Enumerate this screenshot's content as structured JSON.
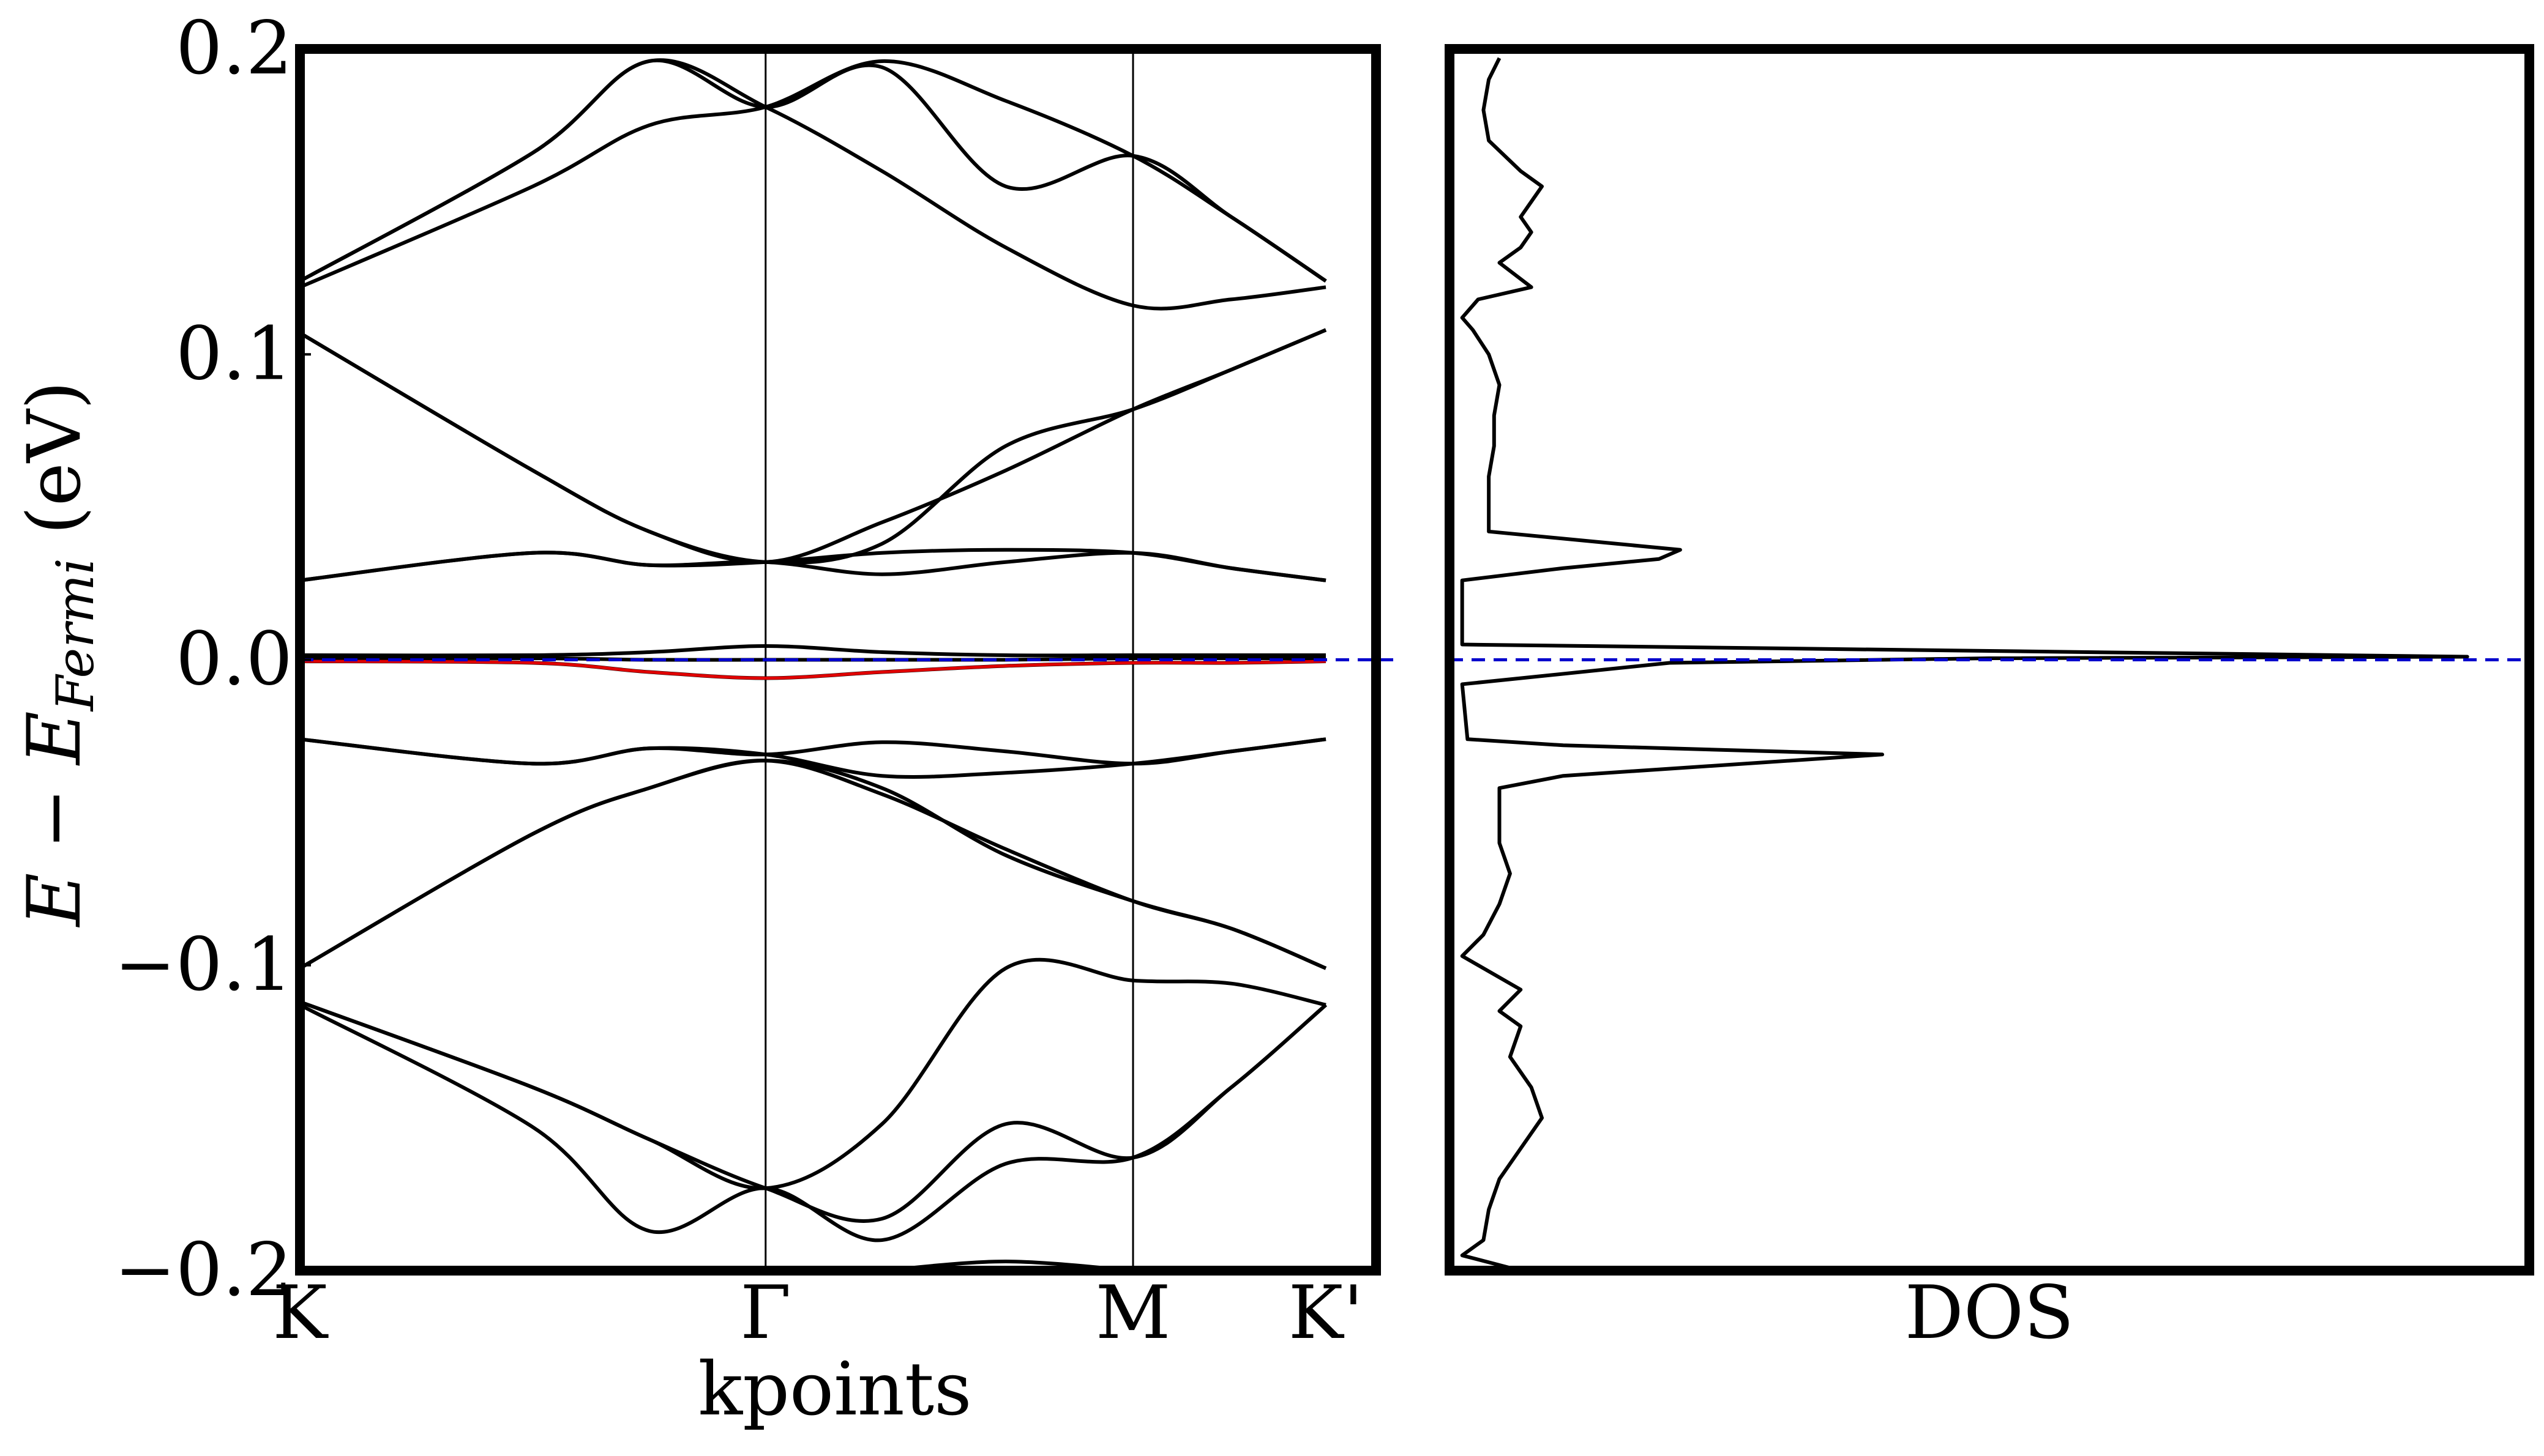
{
  "chart_data": [
    {
      "type": "line",
      "panel": "band-structure",
      "xlabel": "kpoints",
      "ylabel": "E − E_Fermi (eV)",
      "ylabel_parts": {
        "E": "E",
        "minus": " − ",
        "sub_symbol": "E",
        "sub": "Fermi",
        "unit": " (eV)"
      },
      "ylim": [
        -0.2,
        0.2
      ],
      "yticks": [
        -0.2,
        -0.1,
        0.0,
        0.1,
        0.2
      ],
      "ytick_labels": [
        "−0.2",
        "−0.1",
        "0.0",
        "0.1",
        "0.2"
      ],
      "xlim": [
        0,
        2.82
      ],
      "kpoints": [
        {
          "label": "K",
          "x": 0
        },
        {
          "label": "Γ",
          "x": 1.28
        },
        {
          "label": "M",
          "x": 2.29
        },
        {
          "label": "K'",
          "x": 2.82
        }
      ],
      "fermi_level": 0.0,
      "colors": {
        "bands": "#000000",
        "highlight_band": "#e00000",
        "fermi_line": "#0000cc"
      },
      "x": [
        0,
        0.64,
        0.96,
        1.28,
        1.6,
        1.94,
        2.29,
        2.56,
        2.82
      ],
      "series": [
        {
          "values": [
            0.122,
            0.155,
            0.175,
            0.181,
            0.196,
            0.183,
            0.165,
            0.145,
            0.124
          ]
        },
        {
          "values": [
            0.124,
            0.166,
            0.196,
            0.181,
            0.16,
            0.135,
            0.116,
            0.118,
            0.122
          ]
        },
        {
          "values": [
            0.124,
            0.166,
            0.196,
            0.181,
            0.194,
            0.155,
            0.165,
            0.145,
            0.124
          ]
        },
        {
          "values": [
            0.107,
            0.062,
            0.042,
            0.032,
            0.045,
            0.062,
            0.082,
            0.095,
            0.108
          ]
        },
        {
          "values": [
            0.107,
            0.062,
            0.042,
            0.032,
            0.038,
            0.07,
            0.082,
            0.095,
            0.108
          ]
        },
        {
          "values": [
            0.026,
            0.035,
            0.031,
            0.032,
            0.035,
            0.036,
            0.035,
            0.03,
            0.026
          ]
        },
        {
          "values": [
            0.026,
            0.035,
            0.031,
            0.032,
            0.028,
            0.032,
            0.035,
            0.03,
            0.026
          ]
        },
        {
          "values": [
            0.0015,
            0.0015,
            0.0025,
            0.0045,
            0.0025,
            0.0015,
            0.0015,
            0.0015,
            0.0015
          ]
        },
        {
          "values": [
            0.0005,
            0.0005,
            0.0,
            0.0,
            0.0,
            0.0,
            0.0005,
            0.0005,
            0.0005
          ]
        },
        {
          "values": [
            -0.0005,
            -0.001,
            -0.004,
            -0.006,
            -0.004,
            -0.002,
            -0.001,
            -0.001,
            -0.0005
          ]
        },
        {
          "name": "highlighted",
          "color": "#e00000",
          "values": [
            -0.0005,
            -0.001,
            -0.004,
            -0.006,
            -0.004,
            -0.002,
            -0.001,
            -0.001,
            -0.0005
          ]
        },
        {
          "values": [
            -0.026,
            -0.034,
            -0.029,
            -0.031,
            -0.027,
            -0.03,
            -0.034,
            -0.03,
            -0.026
          ]
        },
        {
          "values": [
            -0.026,
            -0.034,
            -0.029,
            -0.031,
            -0.038,
            -0.037,
            -0.034,
            -0.03,
            -0.026
          ]
        },
        {
          "values": [
            -0.101,
            -0.057,
            -0.042,
            -0.033,
            -0.044,
            -0.062,
            -0.079,
            -0.088,
            -0.101
          ]
        },
        {
          "values": [
            -0.101,
            -0.057,
            -0.042,
            -0.033,
            -0.042,
            -0.064,
            -0.079,
            -0.088,
            -0.101
          ]
        },
        {
          "values": [
            -0.112,
            -0.14,
            -0.157,
            -0.173,
            -0.152,
            -0.101,
            -0.105,
            -0.106,
            -0.113
          ]
        },
        {
          "values": [
            -0.113,
            -0.153,
            -0.187,
            -0.173,
            -0.19,
            -0.165,
            -0.163,
            -0.14,
            -0.113
          ]
        },
        {
          "values": [
            -0.112,
            -0.14,
            -0.157,
            -0.173,
            -0.183,
            -0.152,
            -0.163,
            -0.14,
            -0.113
          ]
        },
        {
          "values": [
            null,
            null,
            null,
            null,
            -0.2,
            -0.197,
            -0.2,
            null,
            null
          ]
        }
      ]
    },
    {
      "type": "line",
      "panel": "dos",
      "xlabel": "DOS",
      "orientation": "horizontal",
      "ylim": [
        -0.2,
        0.2
      ],
      "xlim": [
        0,
        1
      ],
      "fermi_level": 0.0,
      "colors": {
        "dos": "#000000",
        "fermi_line": "#0000cc"
      },
      "energy": [
        0.197,
        0.19,
        0.18,
        0.17,
        0.16,
        0.155,
        0.15,
        0.145,
        0.14,
        0.135,
        0.13,
        0.122,
        0.118,
        0.112,
        0.108,
        0.1,
        0.09,
        0.08,
        0.07,
        0.06,
        0.05,
        0.042,
        0.036,
        0.033,
        0.03,
        0.026,
        0.005,
        0.001,
        0.0005,
        -0.001,
        -0.008,
        -0.026,
        -0.028,
        -0.031,
        -0.038,
        -0.042,
        -0.05,
        -0.06,
        -0.07,
        -0.08,
        -0.09,
        -0.097,
        -0.1,
        -0.108,
        -0.115,
        -0.12,
        -0.13,
        -0.14,
        -0.15,
        -0.16,
        -0.17,
        -0.18,
        -0.19,
        -0.195,
        -0.2
      ],
      "values": [
        0.04,
        0.03,
        0.025,
        0.03,
        0.06,
        0.08,
        0.07,
        0.06,
        0.07,
        0.06,
        0.04,
        0.07,
        0.02,
        0.005,
        0.015,
        0.03,
        0.04,
        0.035,
        0.035,
        0.03,
        0.03,
        0.03,
        0.21,
        0.19,
        0.1,
        0.005,
        0.005,
        0.95,
        0.5,
        0.2,
        0.005,
        0.01,
        0.1,
        0.4,
        0.1,
        0.04,
        0.04,
        0.04,
        0.05,
        0.04,
        0.025,
        0.005,
        0.02,
        0.06,
        0.04,
        0.06,
        0.05,
        0.07,
        0.08,
        0.06,
        0.04,
        0.03,
        0.025,
        0.005,
        0.06
      ]
    }
  ]
}
